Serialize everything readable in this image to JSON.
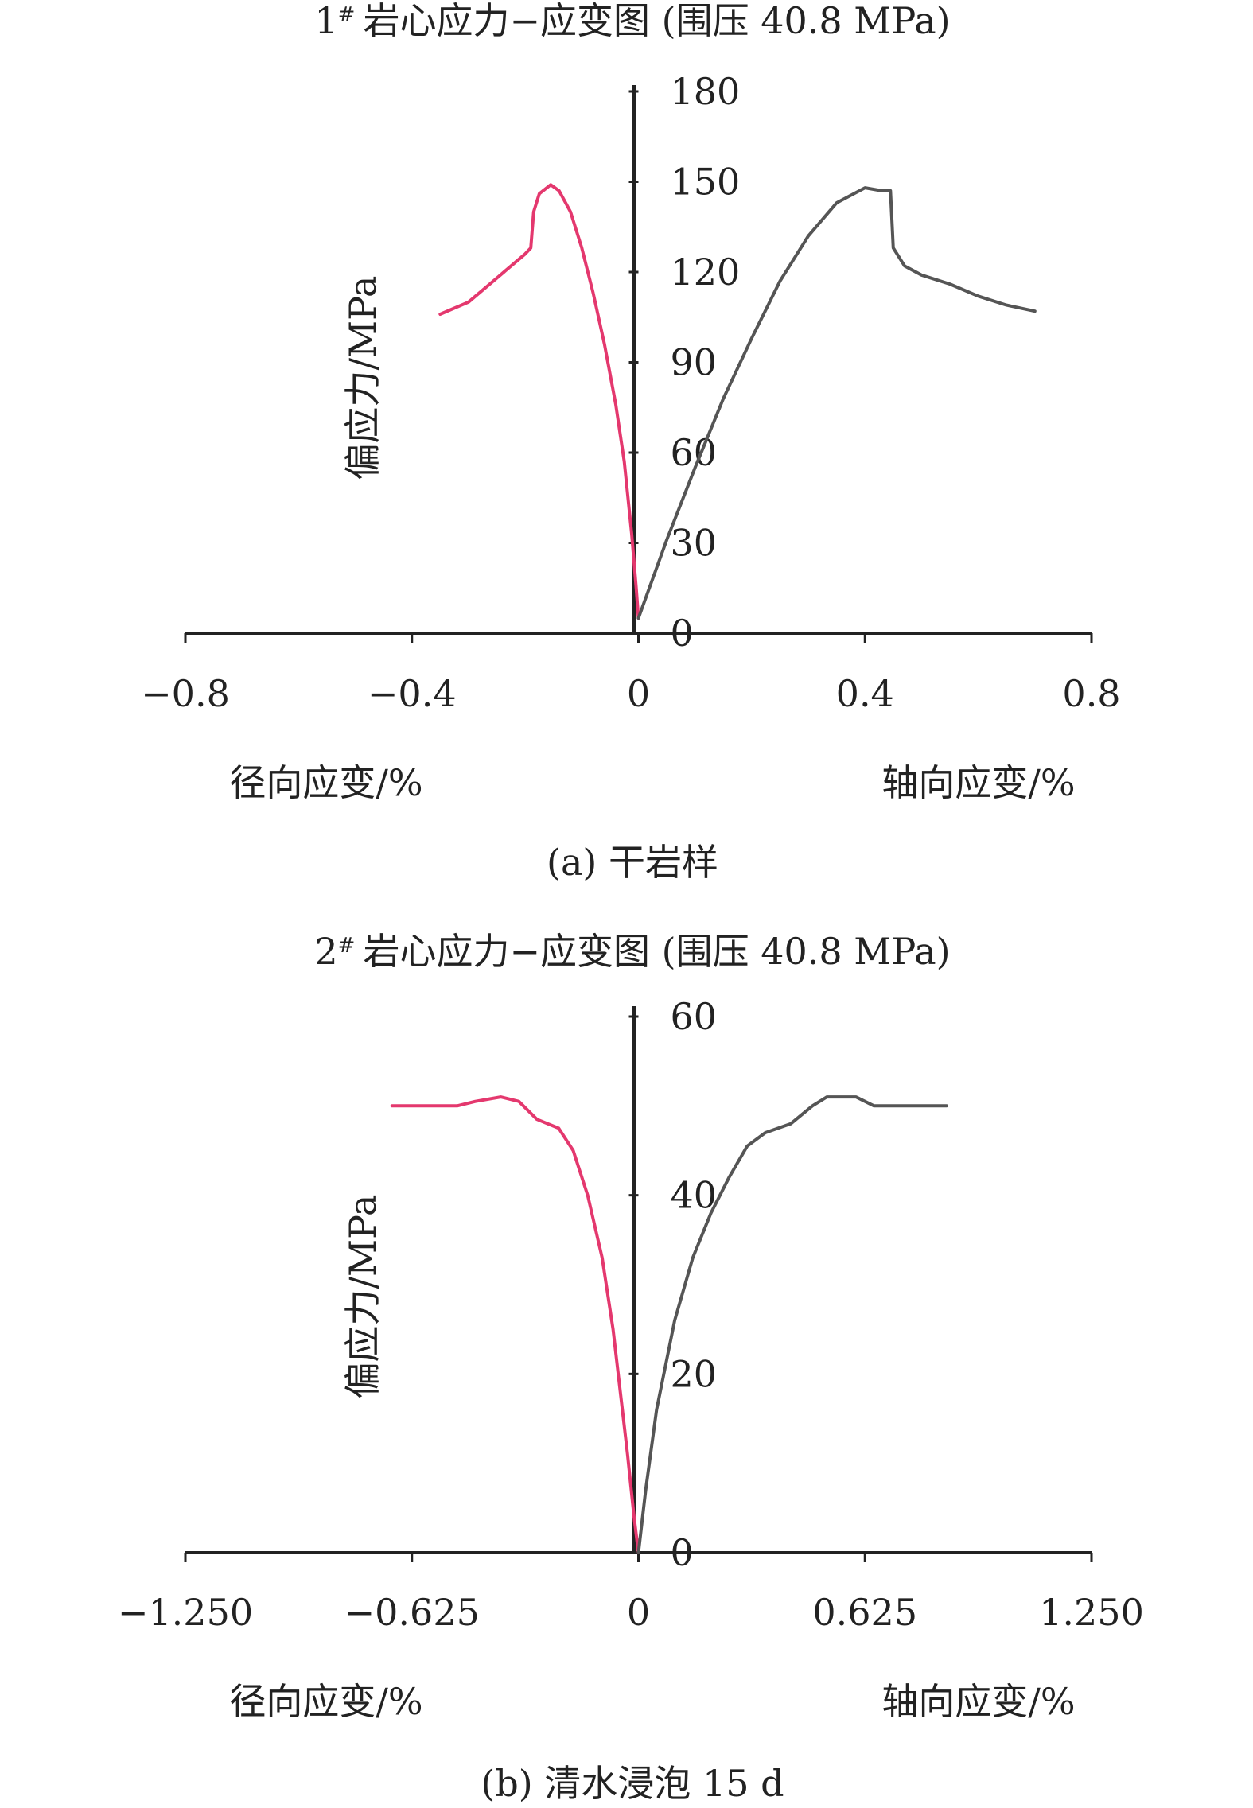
{
  "chart_data": [
    {
      "type": "line",
      "title": "1# 岩心应力−应变图 (围压 40.8 MPa)",
      "title_main": "岩心应力−应变图 (围压 40.8 MPa)",
      "title_prefix": "1",
      "title_sup": "#",
      "caption": "(a) 干岩样",
      "ylabel": "偏应力/MPa",
      "xlabel_left": "径向应变/%",
      "xlabel_right": "轴向应变/%",
      "xlim": [
        -0.8,
        0.8
      ],
      "ylim": [
        0,
        180
      ],
      "xticks": [
        "−0.8",
        "−0.4",
        "0",
        "0.4",
        "0.8"
      ],
      "xtick_values": [
        -0.8,
        -0.4,
        0,
        0.4,
        0.8
      ],
      "yticks": [
        0,
        30,
        60,
        90,
        120,
        150,
        180
      ],
      "grid": false,
      "series": [
        {
          "color": "#e4386e",
          "points": [
            [
              -0.35,
              106
            ],
            [
              -0.3,
              110
            ],
            [
              -0.25,
              118
            ],
            [
              -0.2,
              126
            ],
            [
              -0.19,
              128
            ],
            [
              -0.185,
              140
            ],
            [
              -0.175,
              146
            ],
            [
              -0.155,
              149
            ],
            [
              -0.14,
              147
            ],
            [
              -0.12,
              140
            ],
            [
              -0.1,
              128
            ],
            [
              -0.08,
              113
            ],
            [
              -0.06,
              96
            ],
            [
              -0.04,
              76
            ],
            [
              -0.025,
              57
            ],
            [
              -0.012,
              33
            ],
            [
              -0.004,
              15
            ],
            [
              0,
              5
            ]
          ]
        },
        {
          "color": "#555555",
          "points": [
            [
              0,
              5
            ],
            [
              0.05,
              31
            ],
            [
              0.1,
              55
            ],
            [
              0.15,
              78
            ],
            [
              0.2,
              98
            ],
            [
              0.25,
              117
            ],
            [
              0.3,
              132
            ],
            [
              0.35,
              143
            ],
            [
              0.4,
              148
            ],
            [
              0.43,
              147
            ],
            [
              0.445,
              147
            ],
            [
              0.45,
              128
            ],
            [
              0.47,
              122
            ],
            [
              0.5,
              119
            ],
            [
              0.55,
              116
            ],
            [
              0.6,
              112
            ],
            [
              0.65,
              109
            ],
            [
              0.7,
              107
            ]
          ]
        }
      ]
    },
    {
      "type": "line",
      "title": "2# 岩心应力−应变图 (围压 40.8 MPa)",
      "title_main": "岩心应力−应变图 (围压 40.8 MPa)",
      "title_prefix": "2",
      "title_sup": "#",
      "caption": "(b) 清水浸泡 15 d",
      "ylabel": "偏应力/MPa",
      "xlabel_left": "径向应变/%",
      "xlabel_right": "轴向应变/%",
      "xlim": [
        -1.25,
        1.25
      ],
      "ylim": [
        0,
        60
      ],
      "xticks": [
        "−1.250",
        "−0.625",
        "0",
        "0.625",
        "1.250"
      ],
      "xtick_values": [
        -1.25,
        -0.625,
        0,
        0.625,
        1.25
      ],
      "yticks": [
        0,
        20,
        40,
        60
      ],
      "grid": false,
      "series": [
        {
          "color": "#e4386e",
          "points": [
            [
              -0.68,
              50
            ],
            [
              -0.6,
              50
            ],
            [
              -0.5,
              50
            ],
            [
              -0.45,
              50.5
            ],
            [
              -0.38,
              51
            ],
            [
              -0.33,
              50.5
            ],
            [
              -0.28,
              48.5
            ],
            [
              -0.22,
              47.5
            ],
            [
              -0.18,
              45
            ],
            [
              -0.14,
              40
            ],
            [
              -0.1,
              33
            ],
            [
              -0.07,
              25
            ],
            [
              -0.05,
              18
            ],
            [
              -0.03,
              11
            ],
            [
              -0.012,
              4
            ],
            [
              0,
              0
            ]
          ]
        },
        {
          "color": "#555555",
          "points": [
            [
              0,
              0
            ],
            [
              0.02,
              7
            ],
            [
              0.05,
              16
            ],
            [
              0.1,
              26
            ],
            [
              0.15,
              33
            ],
            [
              0.2,
              38
            ],
            [
              0.25,
              42
            ],
            [
              0.3,
              45.5
            ],
            [
              0.35,
              47
            ],
            [
              0.42,
              48
            ],
            [
              0.48,
              50
            ],
            [
              0.52,
              51
            ],
            [
              0.6,
              51
            ],
            [
              0.65,
              50
            ],
            [
              0.7,
              50
            ],
            [
              0.8,
              50
            ],
            [
              0.85,
              50
            ]
          ]
        }
      ]
    }
  ]
}
